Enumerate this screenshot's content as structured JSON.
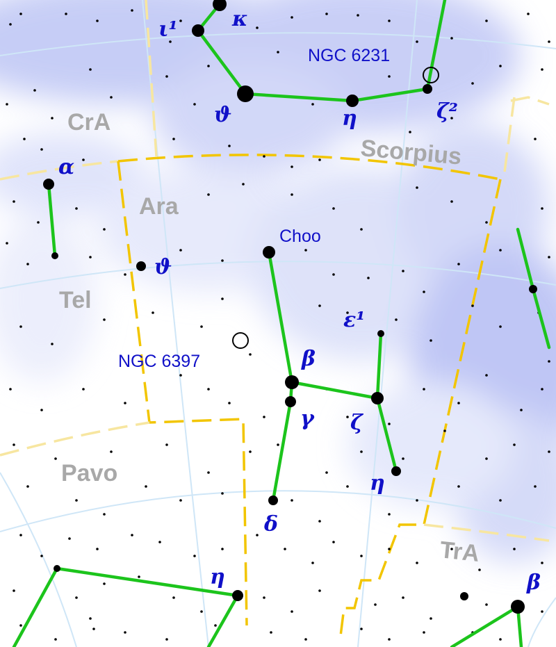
{
  "map": {
    "constellations": [
      {
        "key": "cra",
        "label": "CrA"
      },
      {
        "key": "scorpius",
        "label": "Scorpius"
      },
      {
        "key": "ara",
        "label": "Ara"
      },
      {
        "key": "tel",
        "label": "Tel"
      },
      {
        "key": "pavo",
        "label": "Pavo"
      },
      {
        "key": "tra",
        "label": "TrA"
      }
    ],
    "star_labels": {
      "iota1": "ι¹",
      "kappa_sco": "κ",
      "theta_sco": "ϑ",
      "eta_sco": "η",
      "zeta2": "ζ²",
      "alpha_tel": "α",
      "theta_ara": "ϑ",
      "choo": "Choo",
      "epsilon1": "ε¹",
      "beta_ara": "β",
      "gamma_ara": "γ",
      "zeta_ara": "ζ",
      "eta_ara": "η",
      "delta_ara": "δ",
      "eta_pav": "η",
      "beta_tra": "β"
    },
    "deep_sky_objects": {
      "ngc6231": "NGC 6231",
      "ngc6397": "NGC 6397"
    },
    "colors": {
      "milky_way": "#b8c0f4",
      "constellation_line": "#1cc41c",
      "boundary": "#f2c500",
      "star_label": "#1010c8",
      "constellation_name": "#a8a8a8",
      "grid": "#cfe6f7"
    }
  }
}
